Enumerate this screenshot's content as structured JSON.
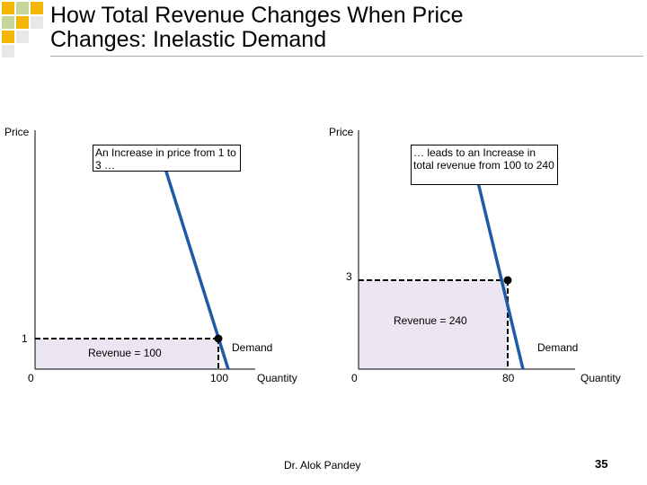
{
  "slide": {
    "title_line1": "How Total Revenue Changes When Price",
    "title_line2": "Changes: Inelastic Demand",
    "author": "Dr. Alok Pandey",
    "page_number": "35",
    "accent_colors": [
      "#f2b500",
      "#c6d59a",
      "#e8e8e8"
    ]
  },
  "chart_data": [
    {
      "type": "line",
      "title": "",
      "xlabel": "Quantity",
      "ylabel": "Price",
      "x_ticks": [
        "0",
        "100"
      ],
      "y_ticks": [
        "1"
      ],
      "series": [
        {
          "name": "Demand",
          "color": "#1f5aa6"
        }
      ],
      "point": {
        "x": 100,
        "y": 1
      },
      "revenue_label": "Revenue = 100",
      "callout": "An Increase in price from 1 to 3 …"
    },
    {
      "type": "line",
      "title": "",
      "xlabel": "Quantity",
      "ylabel": "Price",
      "x_ticks": [
        "0",
        "80"
      ],
      "y_ticks": [
        "3"
      ],
      "series": [
        {
          "name": "Demand",
          "color": "#1f5aa6"
        }
      ],
      "point": {
        "x": 80,
        "y": 3
      },
      "revenue_label": "Revenue = 240",
      "callout": "… leads to an Increase in total revenue from 100 to 240"
    }
  ]
}
